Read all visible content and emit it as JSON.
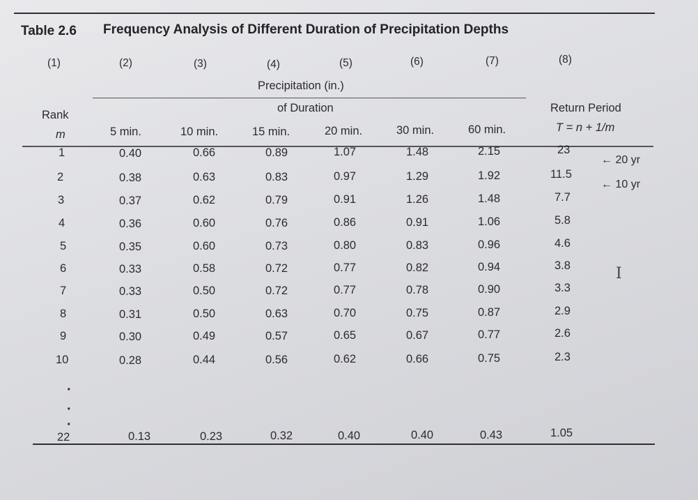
{
  "title": "Table 2.6",
  "subtitle": "Frequency Analysis of Different Duration of Precipitation Depths",
  "column_numbers": [
    "(1)",
    "(2)",
    "(3)",
    "(4)",
    "(5)",
    "(6)",
    "(7)",
    "(8)"
  ],
  "group_header_line1": "Precipitation (in.)",
  "group_header_line2": "of Duration",
  "rank_label": "Rank",
  "rank_symbol": "m",
  "return_period_label": "Return Period",
  "return_period_formula": "T = n + 1/m",
  "durations": [
    "5 min.",
    "10 min.",
    "15 min.",
    "20 min.",
    "30 min.",
    "60 min."
  ],
  "rows": [
    {
      "m": "1",
      "v": [
        "0.40",
        "0.66",
        "0.89",
        "1.07",
        "1.48",
        "2.15"
      ],
      "T": "23"
    },
    {
      "m": "2",
      "v": [
        "0.38",
        "0.63",
        "0.83",
        "0.97",
        "1.29",
        "1.92"
      ],
      "T": "11.5"
    },
    {
      "m": "3",
      "v": [
        "0.37",
        "0.62",
        "0.79",
        "0.91",
        "1.26",
        "1.48"
      ],
      "T": "7.7"
    },
    {
      "m": "4",
      "v": [
        "0.36",
        "0.60",
        "0.76",
        "0.86",
        "0.91",
        "1.06"
      ],
      "T": "5.8"
    },
    {
      "m": "5",
      "v": [
        "0.35",
        "0.60",
        "0.73",
        "0.80",
        "0.83",
        "0.96"
      ],
      "T": "4.6"
    },
    {
      "m": "6",
      "v": [
        "0.33",
        "0.58",
        "0.72",
        "0.77",
        "0.82",
        "0.94"
      ],
      "T": "3.8"
    },
    {
      "m": "7",
      "v": [
        "0.33",
        "0.50",
        "0.72",
        "0.77",
        "0.78",
        "0.90"
      ],
      "T": "3.3"
    },
    {
      "m": "8",
      "v": [
        "0.31",
        "0.50",
        "0.63",
        "0.70",
        "0.75",
        "0.87"
      ],
      "T": "2.9"
    },
    {
      "m": "9",
      "v": [
        "0.30",
        "0.49",
        "0.57",
        "0.65",
        "0.67",
        "0.77"
      ],
      "T": "2.6"
    },
    {
      "m": "10",
      "v": [
        "0.28",
        "0.44",
        "0.56",
        "0.62",
        "0.66",
        "0.75"
      ],
      "T": "2.3"
    }
  ],
  "ellipsis_marks": [
    "·",
    "·",
    "·"
  ],
  "last_row": {
    "m": "22",
    "v": [
      "0.13",
      "0.23",
      "0.32",
      "0.40",
      "0.40",
      "0.43"
    ],
    "T": "1.05"
  },
  "annotations": [
    "← 20 yr",
    "← 10 yr"
  ],
  "cursor_glyph": "I"
}
